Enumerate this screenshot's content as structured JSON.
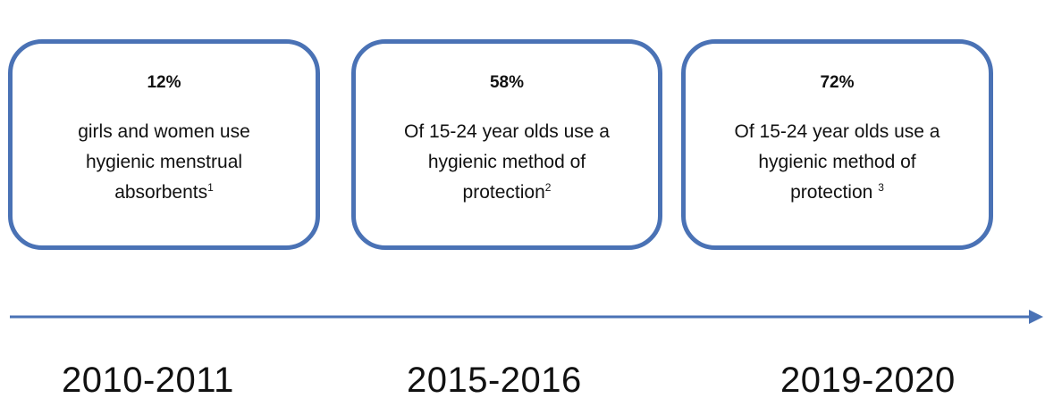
{
  "cards": [
    {
      "percent": "12%",
      "lines": [
        "girls and women use",
        "hygienic menstrual",
        "absorbents"
      ],
      "footnote": "1"
    },
    {
      "percent": "58%",
      "lines": [
        "Of 15-24 year olds use a",
        "hygienic method of",
        "protection"
      ],
      "footnote": "2"
    },
    {
      "percent": "72%",
      "lines": [
        "Of 15-24 year olds use a",
        "hygienic method of",
        "protection"
      ],
      "footnote": "3"
    }
  ],
  "years": [
    "2010-2011",
    "2015-2016",
    "2019-2020"
  ],
  "colors": {
    "accent": "#4a72b5",
    "text": "#111111"
  }
}
